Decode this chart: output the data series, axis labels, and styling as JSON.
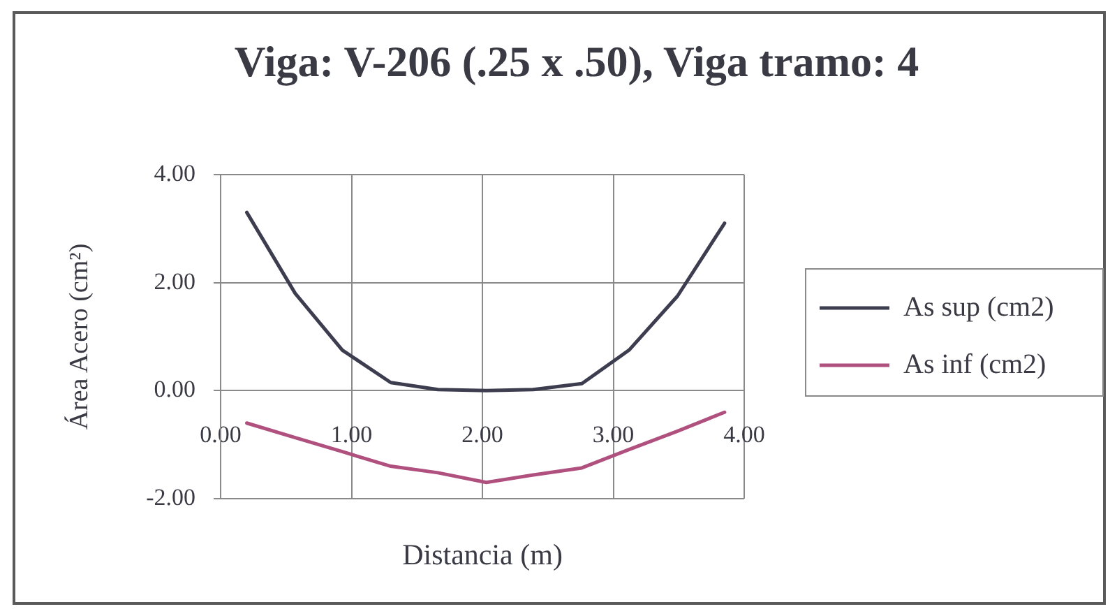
{
  "chart_data": {
    "type": "line",
    "title": "Viga: V-206 (.25 x .50), Viga tramo: 4",
    "xlabel": "Distancia (m)",
    "ylabel": "Área Acero (cm²)",
    "x": [
      0.2,
      0.57,
      0.93,
      1.3,
      1.66,
      2.03,
      2.39,
      2.76,
      3.12,
      3.49,
      3.85
    ],
    "series": [
      {
        "name": "As sup (cm2)",
        "color": "#3d3d50",
        "values": [
          3.3,
          1.8,
          0.75,
          0.15,
          0.02,
          0,
          0.02,
          0.13,
          0.75,
          1.75,
          3.1
        ]
      },
      {
        "name": "As inf (cm2)",
        "color": "#b0507e",
        "values": [
          -0.6,
          -0.87,
          -1.13,
          -1.4,
          -1.52,
          -1.7,
          -1.56,
          -1.43,
          -1.09,
          -0.75,
          -0.4
        ]
      }
    ],
    "xlim": [
      0,
      4
    ],
    "xticks": [
      {
        "value": 0,
        "label": "0.00"
      },
      {
        "value": 1,
        "label": "1.00"
      },
      {
        "value": 2,
        "label": "2.00"
      },
      {
        "value": 3,
        "label": "3.00"
      },
      {
        "value": 4,
        "label": "4.00"
      }
    ],
    "ylim": [
      -2,
      4
    ],
    "yticks": [
      {
        "value": -2,
        "label": "-2.00"
      },
      {
        "value": 0,
        "label": "0.00"
      },
      {
        "value": 2,
        "label": "2.00"
      },
      {
        "value": 4,
        "label": "4.00"
      }
    ],
    "grid": true,
    "legend": "right",
    "marker": "none",
    "line_style": "solid"
  }
}
